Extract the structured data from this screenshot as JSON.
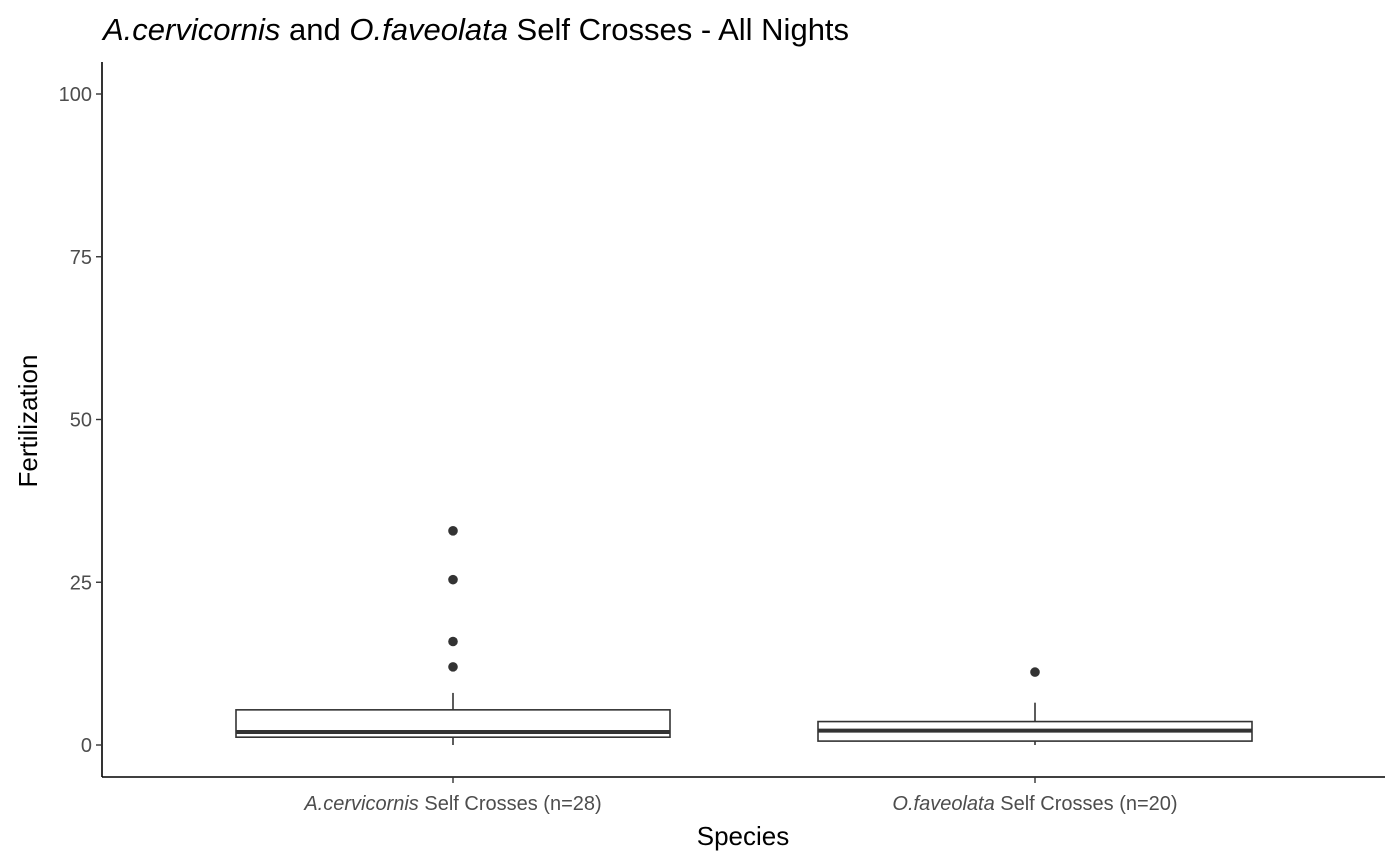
{
  "chart_data": {
    "type": "boxplot",
    "title": {
      "parts": [
        {
          "text": "A.cervicornis",
          "italic": true
        },
        {
          "text": " and ",
          "italic": false
        },
        {
          "text": "O.faveolata",
          "italic": true
        },
        {
          "text": " Self Crosses - All Nights",
          "italic": false
        }
      ]
    },
    "xlabel": "Species",
    "ylabel": "Fertilization",
    "ylim": [
      -5,
      105
    ],
    "yticks": [
      0,
      25,
      50,
      75,
      100
    ],
    "grid": false,
    "categories": [
      {
        "label_parts": [
          {
            "text": "A.cervicornis",
            "italic": true
          },
          {
            "text": " Self Crosses (n=28)",
            "italic": false
          }
        ],
        "box": {
          "whisker_low": 0,
          "q1": 1.2,
          "median": 2.0,
          "q3": 5.4,
          "whisker_high": 8.0
        },
        "outliers": [
          12.0,
          15.9,
          25.4,
          32.9
        ]
      },
      {
        "label_parts": [
          {
            "text": "O.faveolata",
            "italic": true
          },
          {
            "text": " Self Crosses (n=20)",
            "italic": false
          }
        ],
        "box": {
          "whisker_low": 0,
          "q1": 0.6,
          "median": 2.2,
          "q3": 3.6,
          "whisker_high": 6.5
        },
        "outliers": [
          11.2
        ]
      }
    ]
  }
}
